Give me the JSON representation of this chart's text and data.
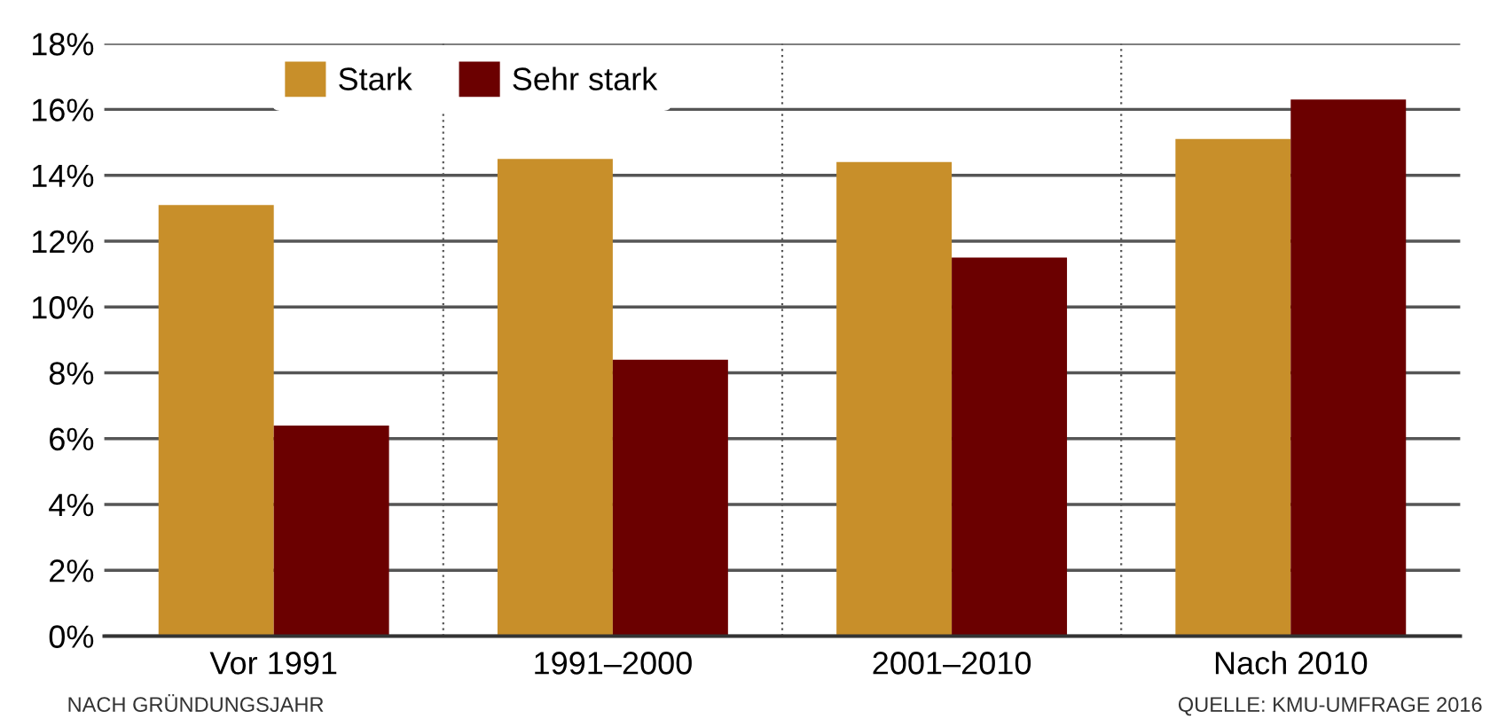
{
  "chart_data": {
    "type": "bar",
    "categories": [
      "Vor 1991",
      "1991–2000",
      "2001–2010",
      "Nach 2010"
    ],
    "series": [
      {
        "name": "Stark",
        "color": "#c88f2a",
        "values": [
          13.1,
          14.5,
          14.4,
          15.1
        ]
      },
      {
        "name": "Sehr stark",
        "color": "#6b0000",
        "values": [
          6.4,
          8.4,
          11.5,
          16.3
        ]
      }
    ],
    "ylim": [
      0,
      18
    ],
    "yticks": [
      {
        "value": 0,
        "label": "0%"
      },
      {
        "value": 2,
        "label": "2%"
      },
      {
        "value": 4,
        "label": "4%"
      },
      {
        "value": 6,
        "label": "6%"
      },
      {
        "value": 8,
        "label": "8%"
      },
      {
        "value": 10,
        "label": "10%"
      },
      {
        "value": 12,
        "label": "12%"
      },
      {
        "value": 14,
        "label": "14%"
      },
      {
        "value": 16,
        "label": "16%"
      },
      {
        "value": 18,
        "label": "18%"
      }
    ],
    "grid": true,
    "legend": "top left",
    "annotations": [
      "NACH GRÜNDUNGSJAHR",
      "QUELLE: KMU-UMFRAGE 2016"
    ]
  }
}
